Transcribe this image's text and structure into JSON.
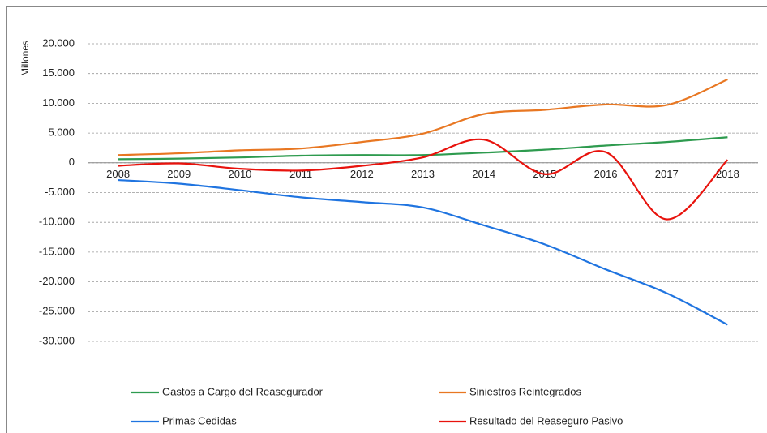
{
  "chart_data": {
    "type": "line",
    "y_label": "Millones",
    "categories": [
      "2008",
      "2009",
      "2010",
      "2011",
      "2012",
      "2013",
      "2014",
      "2015",
      "2016",
      "2017",
      "2018"
    ],
    "series": [
      {
        "name": "Gastos a Cargo del Reasegurador",
        "color": "#2e9b4f",
        "values": [
          600,
          700,
          900,
          1200,
          1300,
          1300,
          1700,
          2200,
          2900,
          3500,
          4300
        ]
      },
      {
        "name": "Siniestros Reintegrados",
        "color": "#e87722",
        "values": [
          1300,
          1600,
          2100,
          2400,
          3500,
          4900,
          8200,
          8900,
          9800,
          9700,
          14000
        ]
      },
      {
        "name": "Primas Cedidas",
        "color": "#1f74e0",
        "values": [
          -2900,
          -3500,
          -4600,
          -5800,
          -6600,
          -7500,
          -10500,
          -13700,
          -17900,
          -21900,
          -27200
        ]
      },
      {
        "name": "Resultado del Reaseguro Pasivo",
        "color": "#e8120c",
        "values": [
          -500,
          -100,
          -1000,
          -1300,
          -500,
          900,
          3900,
          -1900,
          1800,
          -9500,
          500
        ]
      }
    ],
    "ylim": [
      -30000,
      20000
    ],
    "yticks": [
      {
        "value": -30000,
        "label": "-30.000"
      },
      {
        "value": -25000,
        "label": "-25.000"
      },
      {
        "value": -20000,
        "label": "-20.000"
      },
      {
        "value": -15000,
        "label": "-15.000"
      },
      {
        "value": -10000,
        "label": "-10.000"
      },
      {
        "value": -5000,
        "label": "-5.000"
      },
      0,
      {
        "value": 5000,
        "label": "5.000"
      },
      {
        "value": 10000,
        "label": "10.000"
      },
      {
        "value": 15000,
        "label": "15.000"
      },
      {
        "value": 20000,
        "label": "20.000"
      }
    ],
    "grid": true,
    "smooth": true
  }
}
